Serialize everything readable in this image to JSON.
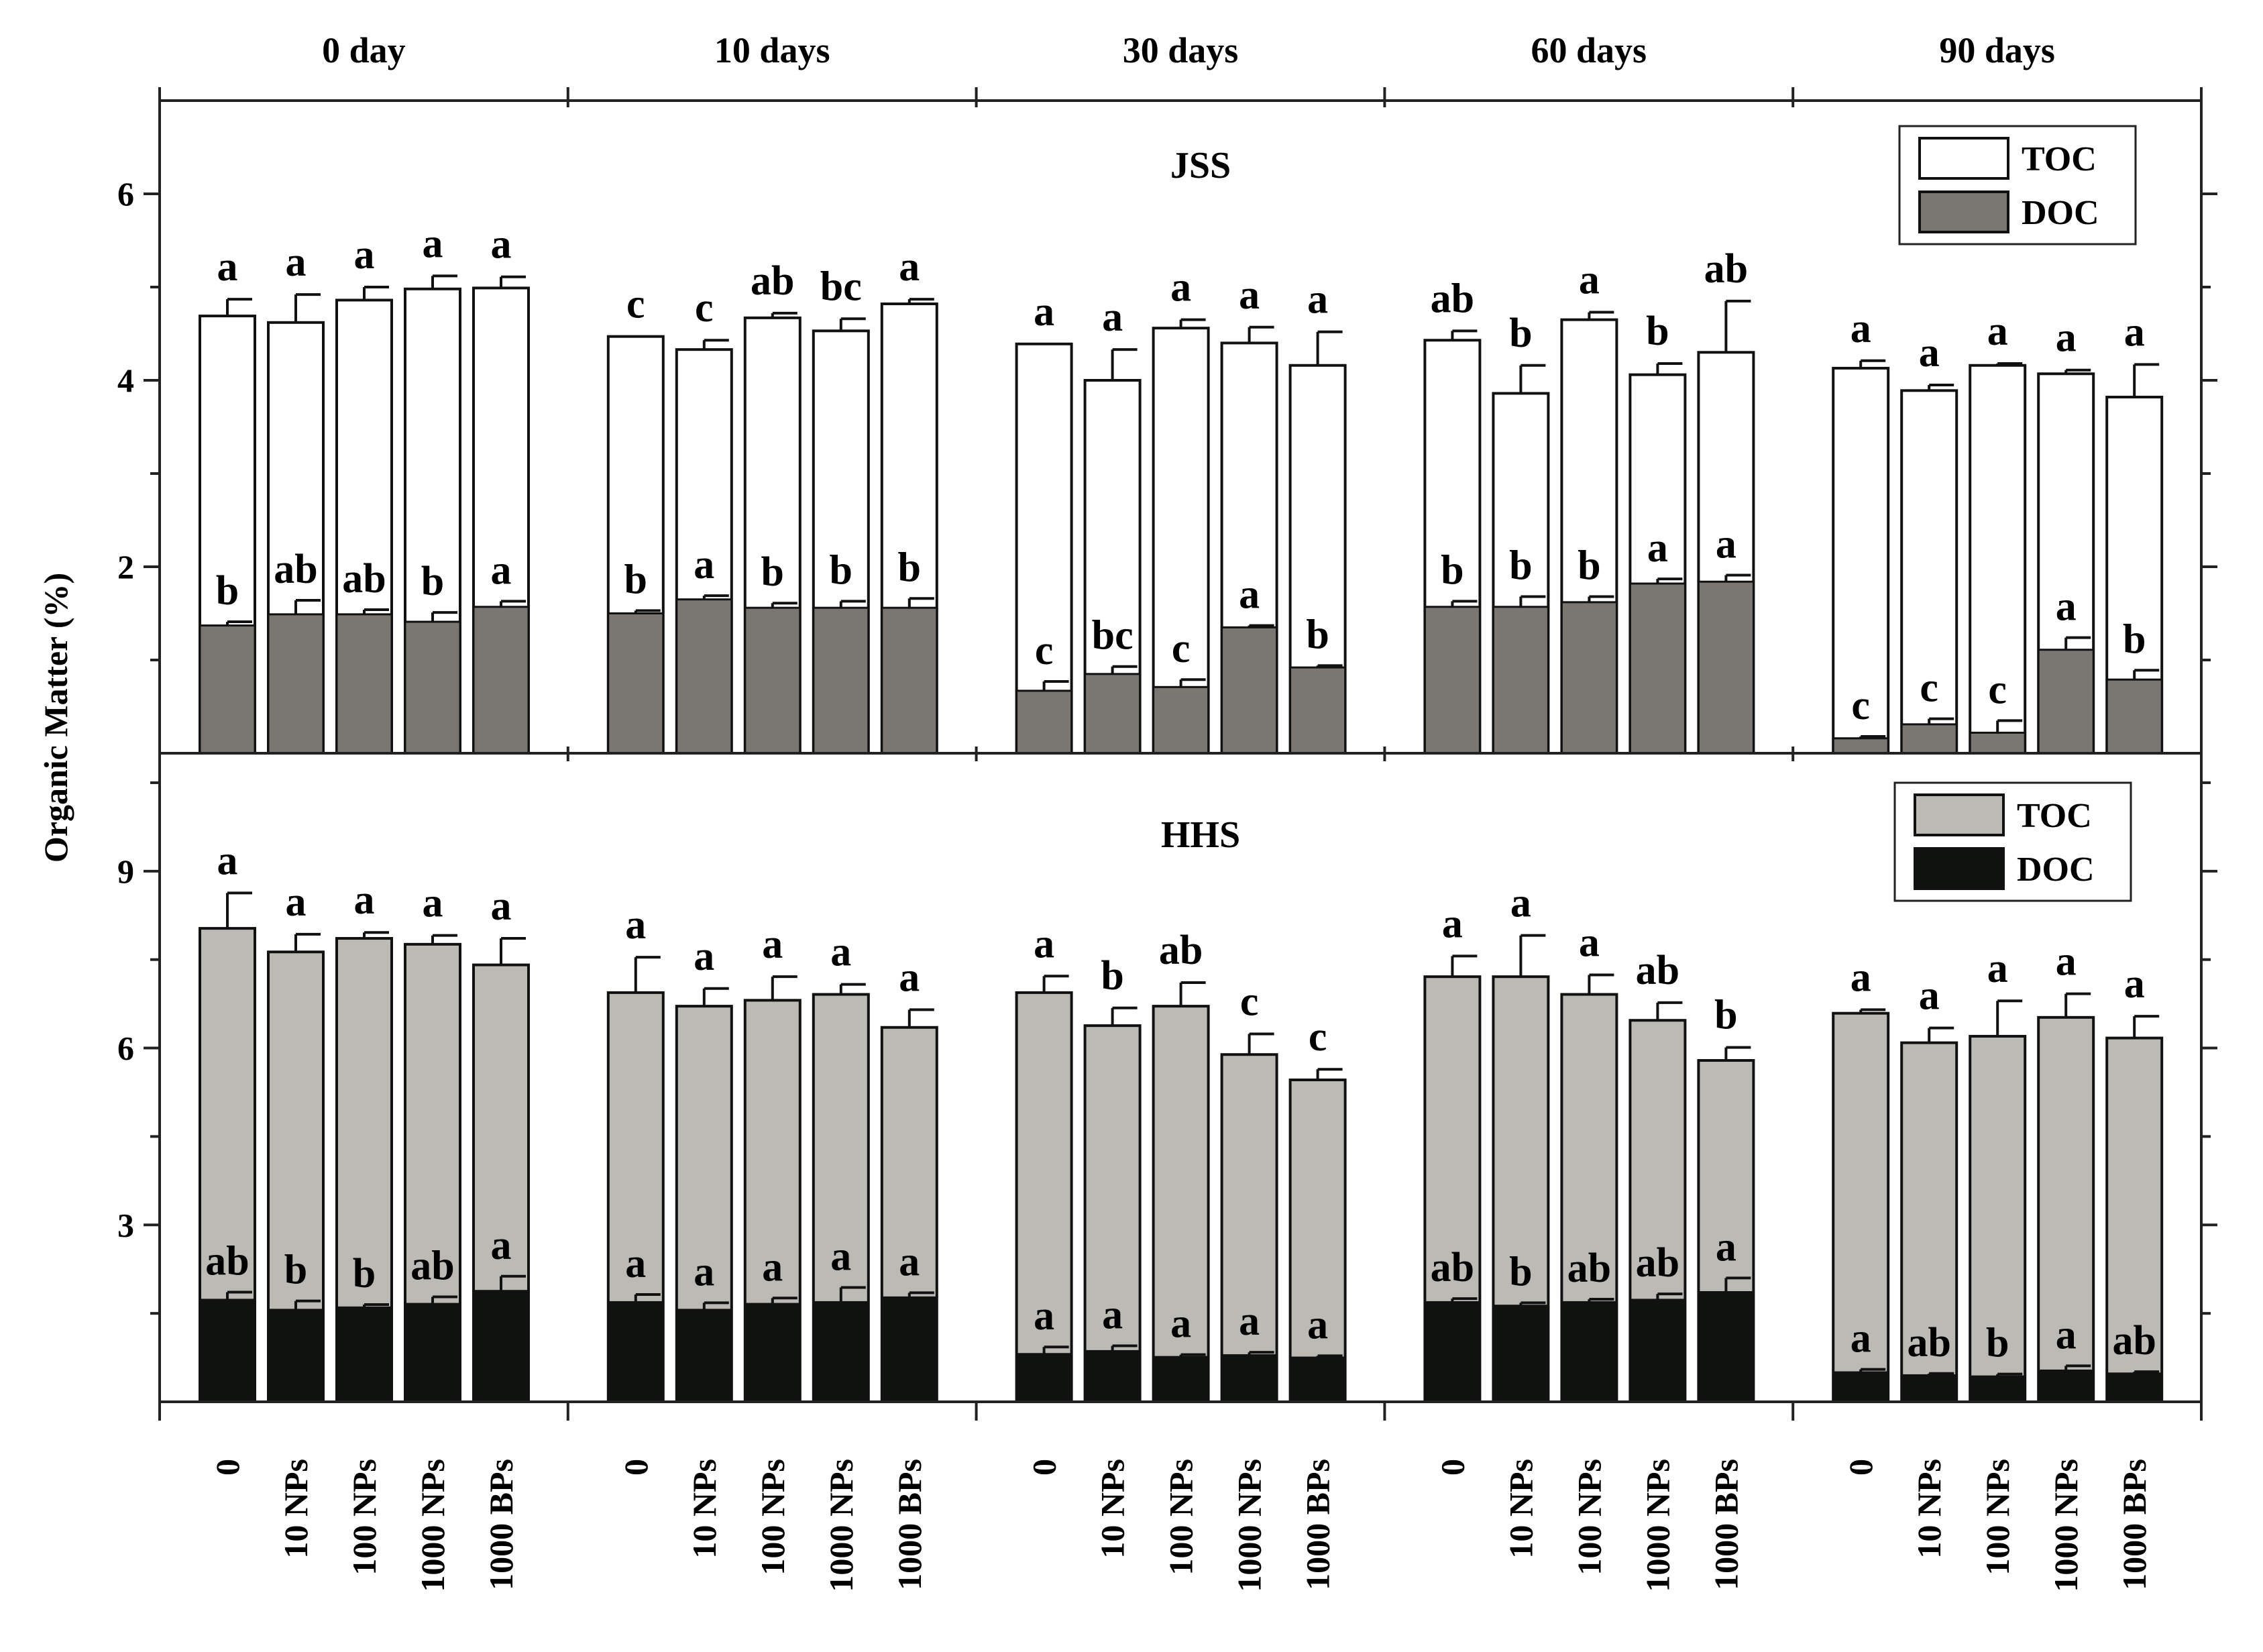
{
  "chart_data": {
    "type": "bar",
    "stacked_overlay": true,
    "ylabel": "Organic Matter (%)",
    "time_points": [
      "0 day",
      "10 days",
      "30 days",
      "60 days",
      "90 days"
    ],
    "treatments": [
      "0",
      "10 NPs",
      "100 NPs",
      "1000 NPs",
      "1000 BPs"
    ],
    "panels": [
      {
        "title": "JSS",
        "ylim": [
          0,
          7
        ],
        "yticks": [
          2,
          4,
          6
        ],
        "legend_position": "top-right",
        "legend": [
          {
            "name": "TOC",
            "color": "#ffffff"
          },
          {
            "name": "DOC",
            "color": "#7a7672"
          }
        ],
        "series": [
          {
            "name": "TOC",
            "values": [
              [
                4.69,
                4.62,
                4.86,
                4.98,
                4.99
              ],
              [
                4.47,
                4.33,
                4.67,
                4.53,
                4.82
              ],
              [
                4.39,
                4.0,
                4.56,
                4.4,
                4.16
              ],
              [
                4.43,
                3.86,
                4.65,
                4.06,
                4.3
              ],
              [
                4.13,
                3.89,
                4.16,
                4.07,
                3.82
              ]
            ],
            "errors": [
              [
                0.18,
                0.3,
                0.14,
                0.14,
                0.12
              ],
              [
                0,
                0.1,
                0.05,
                0.13,
                0.05
              ],
              [
                0,
                0.33,
                0.09,
                0.17,
                0.36
              ],
              [
                0.1,
                0.3,
                0.08,
                0.12,
                0.55
              ],
              [
                0.08,
                0.06,
                0.02,
                0.04,
                0.35
              ]
            ],
            "letters": [
              [
                "a",
                "a",
                "a",
                "a",
                "a"
              ],
              [
                "c",
                "c",
                "ab",
                "bc",
                "a"
              ],
              [
                "a",
                "a",
                "a",
                "a",
                "a"
              ],
              [
                "ab",
                "b",
                "a",
                "b",
                "ab"
              ],
              [
                "a",
                "a",
                "a",
                "a",
                "a"
              ]
            ]
          },
          {
            "name": "DOC",
            "values": [
              [
                1.37,
                1.49,
                1.49,
                1.41,
                1.57
              ],
              [
                1.5,
                1.65,
                1.56,
                1.56,
                1.56
              ],
              [
                0.67,
                0.85,
                0.71,
                1.35,
                0.92
              ],
              [
                1.57,
                1.57,
                1.62,
                1.82,
                1.84
              ],
              [
                0.16,
                0.31,
                0.22,
                1.11,
                0.79
              ]
            ],
            "errors": [
              [
                0.04,
                0.15,
                0.05,
                0.1,
                0.06
              ],
              [
                0.03,
                0.04,
                0.05,
                0.07,
                0.1
              ],
              [
                0.1,
                0.08,
                0.08,
                0.02,
                0.02
              ],
              [
                0.06,
                0.11,
                0.06,
                0.05,
                0.07
              ],
              [
                0.02,
                0.06,
                0.13,
                0.13,
                0.1
              ]
            ],
            "letters": [
              [
                "b",
                "ab",
                "ab",
                "b",
                "a"
              ],
              [
                "b",
                "a",
                "b",
                "b",
                "b"
              ],
              [
                "c",
                "bc",
                "c",
                "a",
                "b"
              ],
              [
                "b",
                "b",
                "b",
                "a",
                "a"
              ],
              [
                "c",
                "c",
                "c",
                "a",
                "b"
              ]
            ]
          }
        ]
      },
      {
        "title": "HHS",
        "ylim": [
          0,
          11
        ],
        "yticks": [
          3,
          6,
          9
        ],
        "legend_position": "top-right",
        "legend": [
          {
            "name": "TOC",
            "color": "#bcbab5"
          },
          {
            "name": "DOC",
            "color": "#0f120e"
          }
        ],
        "series": [
          {
            "name": "TOC",
            "values": [
              [
                8.03,
                7.63,
                7.86,
                7.76,
                7.41
              ],
              [
                6.94,
                6.71,
                6.81,
                6.91,
                6.35
              ],
              [
                6.94,
                6.38,
                6.71,
                5.89,
                5.46
              ],
              [
                7.21,
                7.21,
                6.91,
                6.47,
                5.79
              ],
              [
                6.59,
                6.09,
                6.2,
                6.52,
                6.17
              ]
            ],
            "errors": [
              [
                0.6,
                0.3,
                0.1,
                0.15,
                0.45
              ],
              [
                0.6,
                0.3,
                0.4,
                0.17,
                0.3
              ],
              [
                0.28,
                0.3,
                0.4,
                0.35,
                0.18
              ],
              [
                0.35,
                0.7,
                0.33,
                0.3,
                0.22
              ],
              [
                0.06,
                0.25,
                0.6,
                0.4,
                0.37
              ]
            ],
            "letters": [
              [
                "a",
                "a",
                "a",
                "a",
                "a"
              ],
              [
                "a",
                "a",
                "a",
                "a",
                "a"
              ],
              [
                "a",
                "b",
                "ab",
                "c",
                "c"
              ],
              [
                "a",
                "a",
                "a",
                "ab",
                "b"
              ],
              [
                "a",
                "a",
                "a",
                "a",
                "a"
              ]
            ]
          },
          {
            "name": "DOC",
            "values": [
              [
                1.73,
                1.56,
                1.6,
                1.66,
                1.88
              ],
              [
                1.69,
                1.56,
                1.66,
                1.69,
                1.77
              ],
              [
                0.81,
                0.86,
                0.76,
                0.79,
                0.75
              ],
              [
                1.69,
                1.63,
                1.69,
                1.73,
                1.86
              ],
              [
                0.5,
                0.45,
                0.43,
                0.53,
                0.48
              ]
            ],
            "errors": [
              [
                0.13,
                0.15,
                0.05,
                0.12,
                0.25
              ],
              [
                0.13,
                0.12,
                0.1,
                0.25,
                0.08
              ],
              [
                0.12,
                0.09,
                0.04,
                0.05,
                0.03
              ],
              [
                0.06,
                0.05,
                0.05,
                0.1,
                0.24
              ],
              [
                0.05,
                0.03,
                0.04,
                0.08,
                0.03
              ]
            ],
            "letters": [
              [
                "ab",
                "b",
                "b",
                "ab",
                "a"
              ],
              [
                "a",
                "a",
                "a",
                "a",
                "a"
              ],
              [
                "a",
                "a",
                "a",
                "a",
                "a"
              ],
              [
                "ab",
                "b",
                "ab",
                "ab",
                "a"
              ],
              [
                "a",
                "ab",
                "b",
                "a",
                "ab"
              ]
            ]
          }
        ]
      }
    ]
  }
}
